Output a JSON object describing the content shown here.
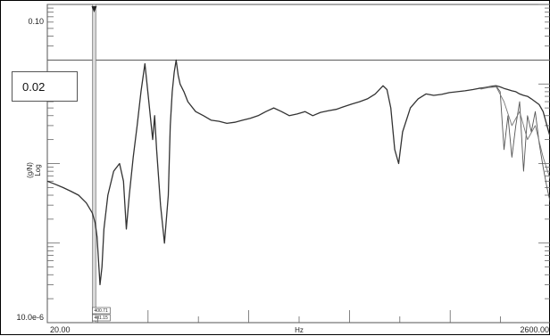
{
  "chart_data": {
    "type": "line",
    "title": "",
    "xlabel": "Hz",
    "ylabel": "Log",
    "ylabel_unit": "(g/N)",
    "x_scale": "linear",
    "y_scale": "log",
    "xlim": [
      20.0,
      2600.0
    ],
    "ylim": [
      1e-05,
      0.1
    ],
    "x_tick_labels": [
      "20.00",
      "2600.00"
    ],
    "y_tick_labels": [
      "0.10",
      "10.0e-6"
    ],
    "grid": false,
    "reference_line_value": 0.02,
    "cursor_x": 260,
    "cursor_labels": [
      "400.71",
      "401.15"
    ],
    "series": [
      {
        "color": "#333333",
        "x": [
          20,
          60,
          100,
          140,
          180,
          220,
          250,
          265,
          275,
          290,
          300,
          310,
          330,
          360,
          390,
          410,
          425,
          440,
          460,
          480,
          500,
          520,
          540,
          560,
          570,
          580,
          600,
          620,
          640,
          650,
          660,
          670,
          680,
          690,
          700,
          720,
          740,
          780,
          820,
          860,
          900,
          940,
          980,
          1020,
          1060,
          1100,
          1140,
          1180,
          1220,
          1260,
          1300,
          1340,
          1380,
          1420,
          1460,
          1500,
          1540,
          1580,
          1620,
          1660,
          1700,
          1740,
          1760,
          1780,
          1800,
          1820,
          1840,
          1880,
          1920,
          1960,
          2000,
          2040,
          2080,
          2120,
          2160,
          2200,
          2230,
          2260,
          2280,
          2300,
          2320,
          2340,
          2360,
          2380,
          2400,
          2420,
          2440,
          2460,
          2480,
          2500,
          2520,
          2540,
          2560,
          2580,
          2600
        ],
        "y": [
          0.0006,
          0.00055,
          0.0005,
          0.00045,
          0.0004,
          0.00032,
          0.00024,
          0.00018,
          0.00012,
          3e-05,
          5e-05,
          0.00015,
          0.0004,
          0.0008,
          0.001,
          0.0006,
          0.00015,
          0.0004,
          0.0012,
          0.003,
          0.008,
          0.018,
          0.006,
          0.002,
          0.004,
          0.0015,
          0.0003,
          0.0001,
          0.0004,
          0.003,
          0.008,
          0.014,
          0.02,
          0.013,
          0.01,
          0.008,
          0.006,
          0.0045,
          0.004,
          0.0035,
          0.0034,
          0.0032,
          0.0033,
          0.0035,
          0.0037,
          0.004,
          0.0045,
          0.005,
          0.0045,
          0.004,
          0.0042,
          0.0045,
          0.004,
          0.0044,
          0.0046,
          0.0048,
          0.0052,
          0.0056,
          0.006,
          0.0065,
          0.0075,
          0.0095,
          0.0085,
          0.005,
          0.0015,
          0.001,
          0.0025,
          0.005,
          0.0065,
          0.0075,
          0.0072,
          0.0074,
          0.0078,
          0.008,
          0.0082,
          0.0085,
          0.0088,
          0.009,
          0.0092,
          0.0094,
          0.0095,
          0.0092,
          0.0088,
          0.0085,
          0.0082,
          0.008,
          0.0075,
          0.0072,
          0.007,
          0.0065,
          0.006,
          0.0055,
          0.0045,
          0.003,
          0.002
        ]
      },
      {
        "color": "#555555",
        "x": [
          2240,
          2280,
          2320,
          2340,
          2360,
          2380,
          2400,
          2420,
          2440,
          2460,
          2480,
          2500,
          2520,
          2540,
          2560,
          2580,
          2600
        ],
        "y": [
          0.0088,
          0.0092,
          0.0094,
          0.008,
          0.0015,
          0.004,
          0.0012,
          0.003,
          0.006,
          0.0008,
          0.004,
          0.0025,
          0.0045,
          0.0018,
          0.0009,
          0.0005,
          0.0003
        ]
      },
      {
        "color": "#777777",
        "x": [
          2240,
          2280,
          2320,
          2360,
          2400,
          2440,
          2480,
          2520,
          2560,
          2600
        ],
        "y": [
          0.0086,
          0.009,
          0.0092,
          0.006,
          0.003,
          0.0045,
          0.002,
          0.003,
          0.0012,
          0.0006
        ]
      }
    ]
  }
}
